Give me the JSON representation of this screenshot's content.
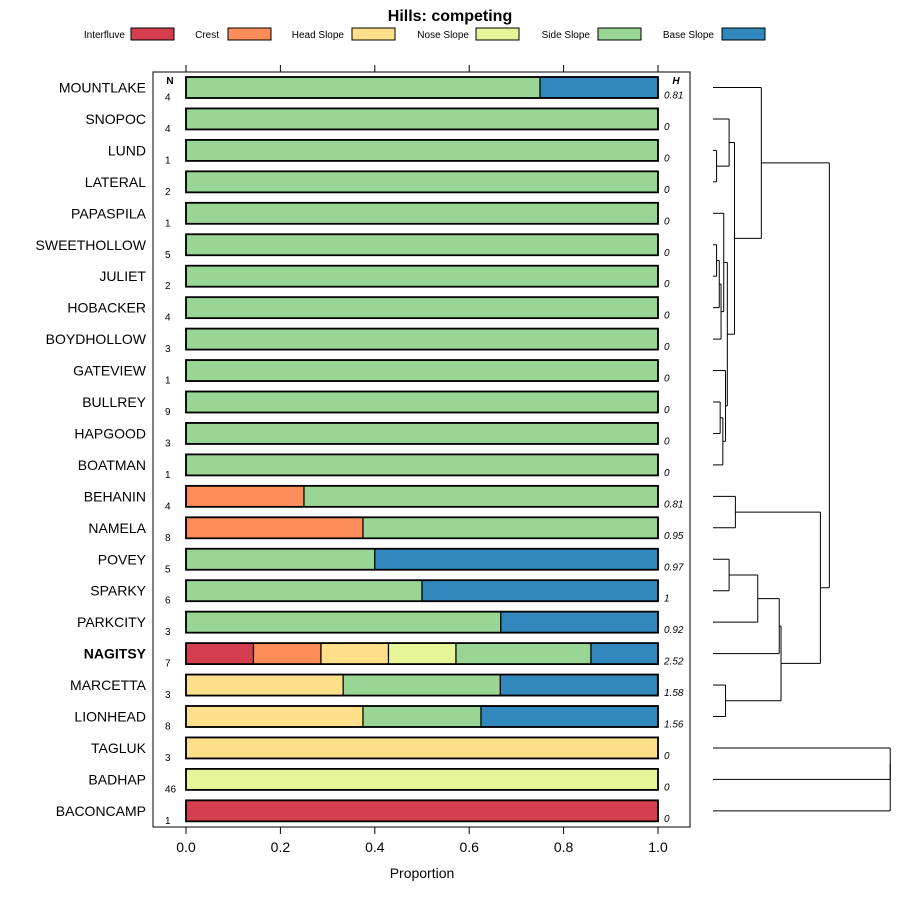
{
  "chart_data": {
    "type": "bar",
    "subtype": "stacked-horizontal-proportion-with-dendrogram",
    "title": "Hills: competing",
    "xlabel": "Proportion",
    "xlim": [
      0,
      1
    ],
    "x_ticks": [
      "0.0",
      "0.2",
      "0.4",
      "0.6",
      "0.8",
      "1.0"
    ],
    "n_header": "N",
    "h_header": "H",
    "legend": [
      {
        "name": "Interfluve",
        "color": "#d53e4f"
      },
      {
        "name": "Crest",
        "color": "#fc8d59"
      },
      {
        "name": "Head Slope",
        "color": "#fee08b"
      },
      {
        "name": "Nose Slope",
        "color": "#e6f598"
      },
      {
        "name": "Side Slope",
        "color": "#99d594"
      },
      {
        "name": "Base Slope",
        "color": "#3288bd"
      }
    ],
    "highlight": "NAGITSY",
    "rows": [
      {
        "name": "MOUNTLAKE",
        "n": "4",
        "h": "0.81",
        "values": [
          0,
          0,
          0,
          0,
          0.75,
          0.25
        ]
      },
      {
        "name": "SNOPOC",
        "n": "4",
        "h": "0",
        "values": [
          0,
          0,
          0,
          0,
          1,
          0
        ]
      },
      {
        "name": "LUND",
        "n": "1",
        "h": "0",
        "values": [
          0,
          0,
          0,
          0,
          1,
          0
        ]
      },
      {
        "name": "LATERAL",
        "n": "2",
        "h": "0",
        "values": [
          0,
          0,
          0,
          0,
          1,
          0
        ]
      },
      {
        "name": "PAPASPILA",
        "n": "1",
        "h": "0",
        "values": [
          0,
          0,
          0,
          0,
          1,
          0
        ]
      },
      {
        "name": "SWEETHOLLOW",
        "n": "5",
        "h": "0",
        "values": [
          0,
          0,
          0,
          0,
          1,
          0
        ]
      },
      {
        "name": "JULIET",
        "n": "2",
        "h": "0",
        "values": [
          0,
          0,
          0,
          0,
          1,
          0
        ]
      },
      {
        "name": "HOBACKER",
        "n": "4",
        "h": "0",
        "values": [
          0,
          0,
          0,
          0,
          1,
          0
        ]
      },
      {
        "name": "BOYDHOLLOW",
        "n": "3",
        "h": "0",
        "values": [
          0,
          0,
          0,
          0,
          1,
          0
        ]
      },
      {
        "name": "GATEVIEW",
        "n": "1",
        "h": "0",
        "values": [
          0,
          0,
          0,
          0,
          1,
          0
        ]
      },
      {
        "name": "BULLREY",
        "n": "9",
        "h": "0",
        "values": [
          0,
          0,
          0,
          0,
          1,
          0
        ]
      },
      {
        "name": "HAPGOOD",
        "n": "3",
        "h": "0",
        "values": [
          0,
          0,
          0,
          0,
          1,
          0
        ]
      },
      {
        "name": "BOATMAN",
        "n": "1",
        "h": "0",
        "values": [
          0,
          0,
          0,
          0,
          1,
          0
        ]
      },
      {
        "name": "BEHANIN",
        "n": "4",
        "h": "0.81",
        "values": [
          0,
          0.25,
          0,
          0,
          0.75,
          0
        ]
      },
      {
        "name": "NAMELA",
        "n": "8",
        "h": "0.95",
        "values": [
          0,
          0.375,
          0,
          0,
          0.625,
          0
        ]
      },
      {
        "name": "POVEY",
        "n": "5",
        "h": "0.97",
        "values": [
          0,
          0,
          0,
          0,
          0.4,
          0.6
        ]
      },
      {
        "name": "SPARKY",
        "n": "6",
        "h": "1",
        "values": [
          0,
          0,
          0,
          0,
          0.5,
          0.5
        ]
      },
      {
        "name": "PARKCITY",
        "n": "3",
        "h": "0.92",
        "values": [
          0,
          0,
          0,
          0,
          0.667,
          0.333
        ]
      },
      {
        "name": "NAGITSY",
        "n": "7",
        "h": "2.52",
        "values": [
          0.143,
          0.143,
          0.143,
          0.143,
          0.286,
          0.143
        ]
      },
      {
        "name": "MARCETTA",
        "n": "3",
        "h": "1.58",
        "values": [
          0,
          0,
          0.333,
          0,
          0.333,
          0.333
        ]
      },
      {
        "name": "LIONHEAD",
        "n": "8",
        "h": "1.56",
        "values": [
          0,
          0,
          0.375,
          0,
          0.25,
          0.375
        ]
      },
      {
        "name": "TAGLUK",
        "n": "3",
        "h": "0",
        "values": [
          0,
          0,
          1,
          0,
          0,
          0
        ]
      },
      {
        "name": "BADHAP",
        "n": "46",
        "h": "0",
        "values": [
          0,
          0,
          0,
          1,
          0,
          0
        ]
      },
      {
        "name": "BACONCAMP",
        "n": "1",
        "h": "0",
        "values": [
          1,
          0,
          0,
          0,
          0,
          0
        ]
      }
    ],
    "dendrogram": {
      "height_range": [
        0,
        1
      ],
      "merges": [
        {
          "children": [
            2,
            3
          ],
          "height": 0.02
        },
        {
          "children": [
            5,
            6
          ],
          "height": 0.02
        },
        {
          "children": [
            "m1",
            7
          ],
          "height": 0.035
        },
        {
          "children": [
            "m2",
            8
          ],
          "height": 0.045
        },
        {
          "children": [
            4,
            "m3"
          ],
          "height": 0.06
        },
        {
          "children": [
            10,
            11
          ],
          "height": 0.04
        },
        {
          "children": [
            12,
            "m5"
          ],
          "height": 0.055
        },
        {
          "children": [
            9,
            "m6"
          ],
          "height": 0.07
        },
        {
          "children": [
            "m4",
            "m7"
          ],
          "height": 0.08
        },
        {
          "children": [
            1,
            "m0"
          ],
          "height": 0.09
        },
        {
          "children": [
            "m9",
            "m8"
          ],
          "height": 0.12
        },
        {
          "children": [
            0,
            "m10"
          ],
          "height": 0.27
        },
        {
          "children": [
            13,
            14
          ],
          "height": 0.125
        },
        {
          "children": [
            15,
            16
          ],
          "height": 0.09
        },
        {
          "children": [
            "m13",
            17
          ],
          "height": 0.25
        },
        {
          "children": [
            19,
            20
          ],
          "height": 0.07
        },
        {
          "children": [
            "m14",
            18
          ],
          "height": 0.37
        },
        {
          "children": [
            "m16",
            "m15"
          ],
          "height": 0.38
        },
        {
          "children": [
            "m12",
            "m17"
          ],
          "height": 0.6
        },
        {
          "children": [
            "m11",
            "m18"
          ],
          "height": 0.65
        },
        {
          "children": [
            21,
            22
          ],
          "height": 0.99
        },
        {
          "children": [
            "m20",
            23
          ],
          "height": 0.99
        }
      ]
    }
  }
}
